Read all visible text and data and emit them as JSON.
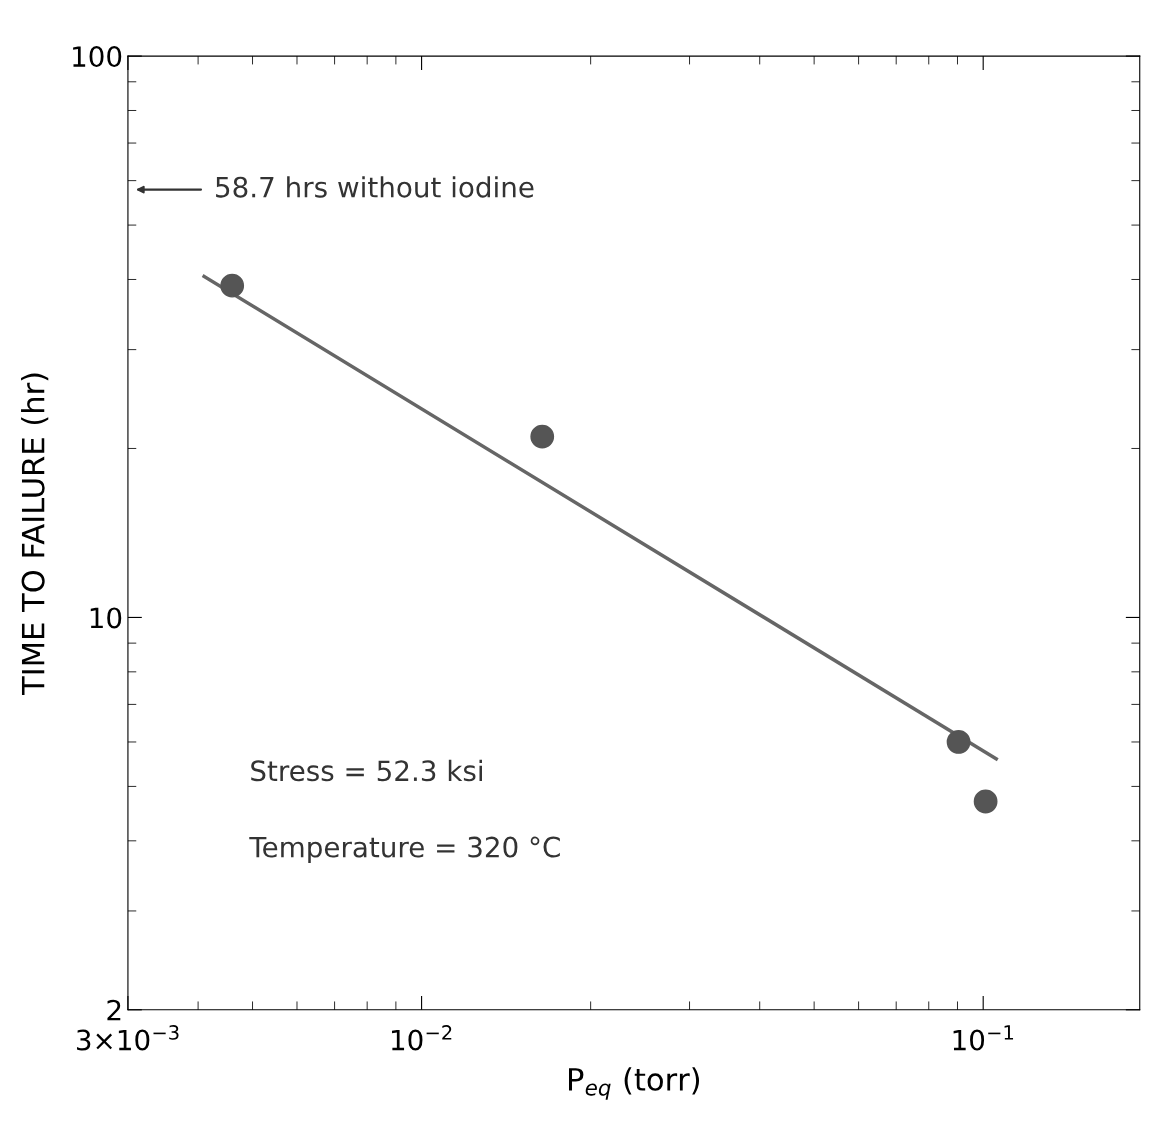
{
  "chart_data": {
    "type": "scatter",
    "log": "xy",
    "xlabel": "P$_{eq}$ (torr)",
    "ylabel": "TIME TO FAILURE (hr)",
    "xlim": [
      0.003,
      0.19
    ],
    "ylim": [
      2,
      100
    ],
    "xticks": [
      {
        "value": 0.003,
        "label": "3×10$^{−3}$"
      },
      {
        "value": 0.01,
        "label": "10$^{−2}$"
      },
      {
        "value": 0.1,
        "label": "10$^{−1}$"
      }
    ],
    "yticks": [
      2,
      10,
      100
    ],
    "grid": false,
    "series": [
      {
        "marker": "circle",
        "color": "#555555",
        "x": [
          0.0046,
          0.0164,
          0.0904,
          0.101
        ],
        "values": [
          39,
          21,
          6.0,
          4.7
        ]
      },
      {
        "type": "line",
        "color": "#666666",
        "x": [
          0.0041,
          0.1055
        ],
        "values": [
          40.5,
          5.6
        ]
      }
    ],
    "annotations": [
      "58.7 hrs without iodine",
      "Stress = 52.3 ksi",
      "Temperature = 320 °C"
    ]
  }
}
